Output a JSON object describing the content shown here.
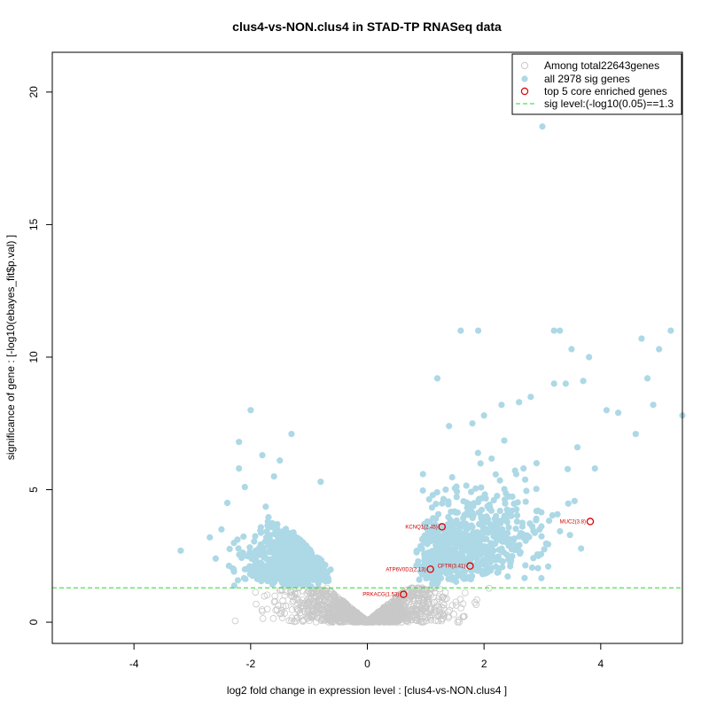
{
  "chart_data": {
    "type": "scatter",
    "title": "clus4-vs-NON.clus4 in STAD-TP RNASeq data",
    "xlabel": "log2 fold change in expression level : [clus4-vs-NON.clus4 ]",
    "ylabel": "significance of gene : [-log10(ebayes_fit$p.val) ]",
    "xlim": [
      -5.4,
      5.4
    ],
    "ylim": [
      -0.8,
      21.5
    ],
    "xticks": [
      -4,
      -2,
      0,
      2,
      4
    ],
    "yticks": [
      0,
      5,
      10,
      15,
      20
    ],
    "sig_threshold": 1.3,
    "legend": {
      "position": "top-right",
      "entries": [
        {
          "label": "Among total22643genes",
          "style": "open-circle",
          "color": "#c8c8c8"
        },
        {
          "label": "all 2978 sig genes",
          "style": "filled-circle",
          "color": "#add8e6"
        },
        {
          "label": "top 5 core enriched genes",
          "style": "open-circle",
          "color": "#e00000"
        },
        {
          "label": "sig level:(-log10(0.05)==1.3",
          "style": "dashed-line",
          "color": "#22dd22"
        }
      ]
    },
    "top_genes": [
      {
        "label": "MUC2(3.8)",
        "x": 3.82,
        "y": 3.8
      },
      {
        "label": "KCNQ1(2.45)",
        "x": 1.28,
        "y": 3.6
      },
      {
        "label": "CFTR(3.41)",
        "x": 1.76,
        "y": 2.12
      },
      {
        "label": "ATP6V0D2(2.13)",
        "x": 1.08,
        "y": 2.0
      },
      {
        "label": "PRKACG(1.53)",
        "x": 0.62,
        "y": 1.05
      }
    ],
    "highlighted_sig_points": [
      {
        "x": 3.0,
        "y": 18.7
      },
      {
        "x": 1.6,
        "y": 11.0
      },
      {
        "x": 1.9,
        "y": 11.0
      },
      {
        "x": 3.2,
        "y": 11.0
      },
      {
        "x": 3.3,
        "y": 11.0
      },
      {
        "x": 5.2,
        "y": 11.0
      },
      {
        "x": 4.7,
        "y": 10.7
      },
      {
        "x": 5.0,
        "y": 10.3
      },
      {
        "x": 3.5,
        "y": 10.3
      },
      {
        "x": 3.8,
        "y": 10.0
      },
      {
        "x": 1.2,
        "y": 9.2
      },
      {
        "x": 3.2,
        "y": 9.0
      },
      {
        "x": 3.4,
        "y": 9.0
      },
      {
        "x": 3.7,
        "y": 9.1
      },
      {
        "x": 4.8,
        "y": 9.2
      },
      {
        "x": 5.4,
        "y": 7.8
      },
      {
        "x": 4.1,
        "y": 8.0
      },
      {
        "x": 4.3,
        "y": 7.9
      },
      {
        "x": 4.6,
        "y": 7.1
      },
      {
        "x": 4.9,
        "y": 8.2
      },
      {
        "x": -2.0,
        "y": 8.0
      },
      {
        "x": -2.2,
        "y": 6.8
      },
      {
        "x": -1.3,
        "y": 7.1
      },
      {
        "x": -3.2,
        "y": 2.7
      },
      {
        "x": -2.7,
        "y": 3.2
      },
      {
        "x": -2.6,
        "y": 2.4
      },
      {
        "x": -2.5,
        "y": 3.5
      },
      {
        "x": -2.4,
        "y": 4.5
      },
      {
        "x": -2.2,
        "y": 5.8
      },
      {
        "x": -2.1,
        "y": 5.1
      },
      {
        "x": -1.8,
        "y": 6.3
      },
      {
        "x": -1.5,
        "y": 6.1
      },
      {
        "x": -1.6,
        "y": 5.5
      },
      {
        "x": -0.8,
        "y": 5.3
      },
      {
        "x": 2.0,
        "y": 7.8
      },
      {
        "x": 2.3,
        "y": 8.2
      },
      {
        "x": 2.6,
        "y": 8.3
      },
      {
        "x": 2.8,
        "y": 8.5
      },
      {
        "x": 3.9,
        "y": 5.8
      },
      {
        "x": 3.1,
        "y": 2.1
      },
      {
        "x": 2.4,
        "y": 3.0
      },
      {
        "x": 1.4,
        "y": 7.4
      },
      {
        "x": 1.8,
        "y": 7.5
      },
      {
        "x": 2.9,
        "y": 6.0
      },
      {
        "x": 3.6,
        "y": 6.6
      }
    ],
    "total_background_genes": 22643,
    "sig_gene_count": 2978
  }
}
